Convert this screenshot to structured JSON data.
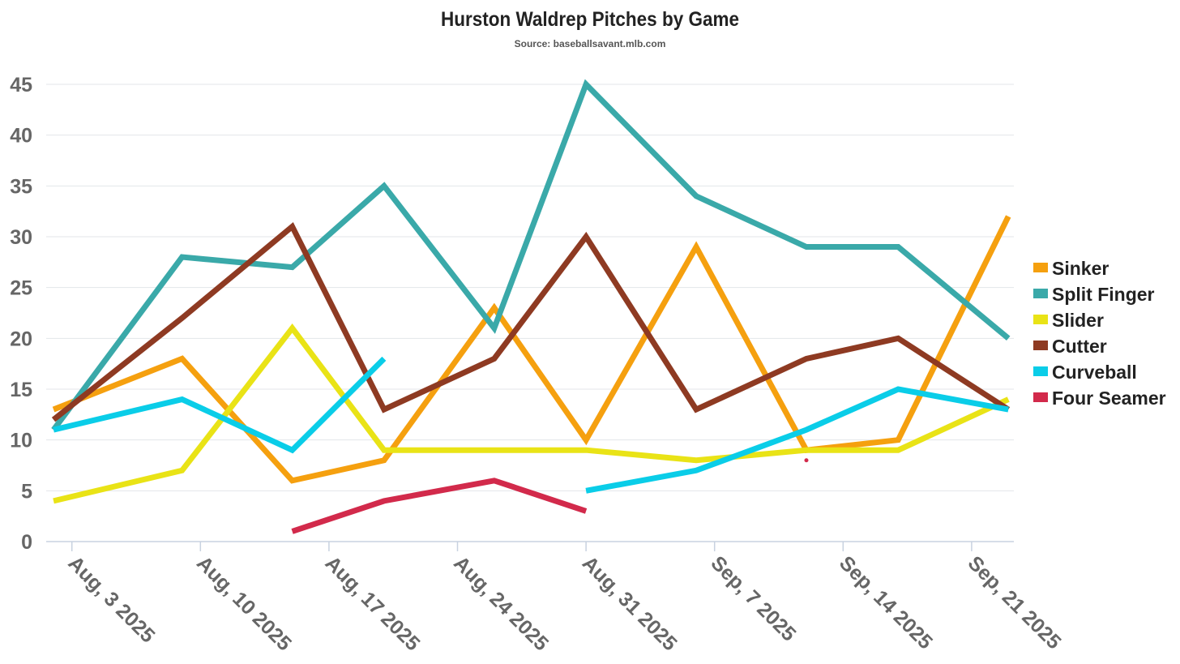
{
  "chart_data": {
    "type": "line",
    "title": "Hurston Waldrep Pitches by Game",
    "subtitle": "Source: baseballsavant.mlb.com",
    "xlabel": "",
    "ylabel": "",
    "ylim": [
      0,
      45
    ],
    "yticks": [
      0,
      5,
      10,
      15,
      20,
      25,
      30,
      35,
      40,
      45
    ],
    "grid": true,
    "legend_position": "right",
    "xaxis": {
      "start": "2025-08-01",
      "end": "2025-09-23",
      "ticks": [
        {
          "day": 2,
          "label": "Aug, 3 2025"
        },
        {
          "day": 9,
          "label": "Aug, 10 2025"
        },
        {
          "day": 16,
          "label": "Aug, 17 2025"
        },
        {
          "day": 23,
          "label": "Aug, 24 2025"
        },
        {
          "day": 30,
          "label": "Aug, 31 2025"
        },
        {
          "day": 37,
          "label": "Sep, 7 2025"
        },
        {
          "day": 44,
          "label": "Sep, 14 2025"
        },
        {
          "day": 51,
          "label": "Sep, 21 2025"
        }
      ]
    },
    "game_dates": [
      "Aug 2",
      "Aug 9",
      "Aug 15",
      "Aug 20",
      "Aug 26",
      "Aug 31",
      "Sep 6",
      "Sep 12",
      "Sep 17",
      "Sep 23"
    ],
    "x_days": [
      1,
      8,
      14,
      19,
      25,
      30,
      36,
      42,
      47,
      53
    ],
    "series": [
      {
        "name": "Sinker",
        "color": "#F5A00F",
        "values": [
          13,
          18,
          6,
          8,
          23,
          10,
          29,
          9,
          10,
          32
        ]
      },
      {
        "name": "Split Finger",
        "color": "#3AA9A9",
        "values": [
          11,
          28,
          27,
          35,
          21,
          45,
          34,
          29,
          29,
          20
        ]
      },
      {
        "name": "Slider",
        "color": "#E9E316",
        "values": [
          4,
          7,
          21,
          9,
          9,
          9,
          8,
          9,
          9,
          14
        ]
      },
      {
        "name": "Cutter",
        "color": "#8E3A22",
        "values": [
          12,
          22,
          31,
          13,
          18,
          30,
          13,
          18,
          20,
          13
        ]
      },
      {
        "name": "Curveball",
        "color": "#0ACDE8",
        "values": [
          11,
          14,
          9,
          18,
          null,
          5,
          7,
          11,
          15,
          13
        ]
      },
      {
        "name": "Four Seamer",
        "color": "#D22A4B",
        "values": [
          null,
          null,
          1,
          4,
          6,
          3,
          null,
          8,
          null,
          null
        ]
      }
    ]
  }
}
